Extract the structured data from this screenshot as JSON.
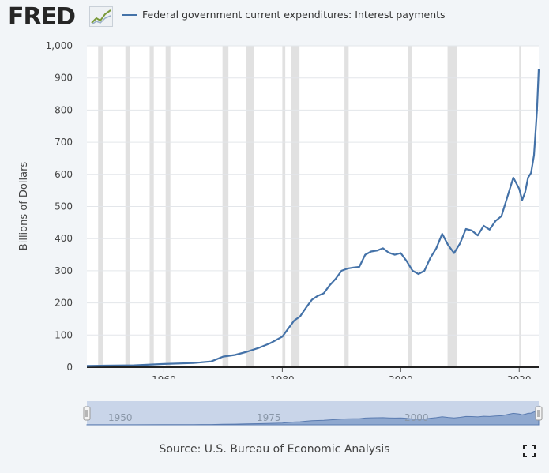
{
  "header": {
    "logo_text": "FRED",
    "logo_icon": "line-chart-icon",
    "legend_label": "Federal government current expenditures: Interest payments",
    "legend_color": "#4472a8"
  },
  "chart_data": {
    "type": "line",
    "title": "",
    "xlabel": "",
    "ylabel": "Billions of Dollars",
    "xlim": [
      1947,
      2023.3
    ],
    "ylim": [
      0,
      1000
    ],
    "y_ticks": [
      0,
      100,
      200,
      300,
      400,
      500,
      600,
      700,
      800,
      900,
      1000
    ],
    "y_tick_labels": [
      "0",
      "100",
      "200",
      "300",
      "400",
      "500",
      "600",
      "700",
      "800",
      "900",
      "1,000"
    ],
    "x_ticks": [
      1960,
      1980,
      2000,
      2020
    ],
    "x_tick_labels": [
      "1960",
      "1980",
      "2000",
      "2020"
    ],
    "grid": true,
    "legend": "top",
    "recession_bands": [
      [
        1948.9,
        1949.8
      ],
      [
        1953.5,
        1954.3
      ],
      [
        1957.6,
        1958.3
      ],
      [
        1960.3,
        1961.1
      ],
      [
        1969.9,
        1970.9
      ],
      [
        1973.9,
        1975.2
      ],
      [
        1980.0,
        1980.5
      ],
      [
        1981.5,
        1982.9
      ],
      [
        1990.5,
        1991.2
      ],
      [
        2001.2,
        2001.9
      ],
      [
        2007.9,
        2009.5
      ],
      [
        2020.0,
        2020.3
      ]
    ],
    "series": [
      {
        "name": "Federal government current expenditures: Interest payments",
        "color": "#4472a8",
        "x": [
          1947,
          1950,
          1955,
          1960,
          1965,
          1968,
          1970,
          1972,
          1974,
          1976,
          1978,
          1980,
          1981,
          1982,
          1983,
          1984,
          1985,
          1986,
          1987,
          1988,
          1989,
          1990,
          1991,
          1992,
          1993,
          1994,
          1995,
          1996,
          1997,
          1998,
          1999,
          2000,
          2001,
          2002,
          2003,
          2004,
          2005,
          2006,
          2007,
          2008,
          2009,
          2010,
          2011,
          2012,
          2013,
          2014,
          2015,
          2016,
          2017,
          2018,
          2019,
          2020,
          2020.5,
          2021,
          2021.5,
          2022,
          2022.5,
          2023,
          2023.3
        ],
        "values": [
          4,
          5,
          6,
          10,
          13,
          18,
          33,
          38,
          48,
          60,
          75,
          95,
          120,
          145,
          158,
          185,
          210,
          222,
          230,
          255,
          275,
          300,
          307,
          310,
          312,
          350,
          360,
          363,
          370,
          356,
          350,
          355,
          330,
          300,
          290,
          300,
          340,
          370,
          415,
          380,
          355,
          385,
          430,
          425,
          410,
          440,
          428,
          455,
          470,
          530,
          590,
          555,
          520,
          545,
          590,
          605,
          660,
          800,
          928
        ]
      }
    ]
  },
  "navigator": {
    "labels": [
      "1950",
      "1975",
      "2000"
    ]
  },
  "footer": {
    "source": "Source: U.S. Bureau of Economic Analysis",
    "fullscreen_icon": "fullscreen-icon"
  }
}
